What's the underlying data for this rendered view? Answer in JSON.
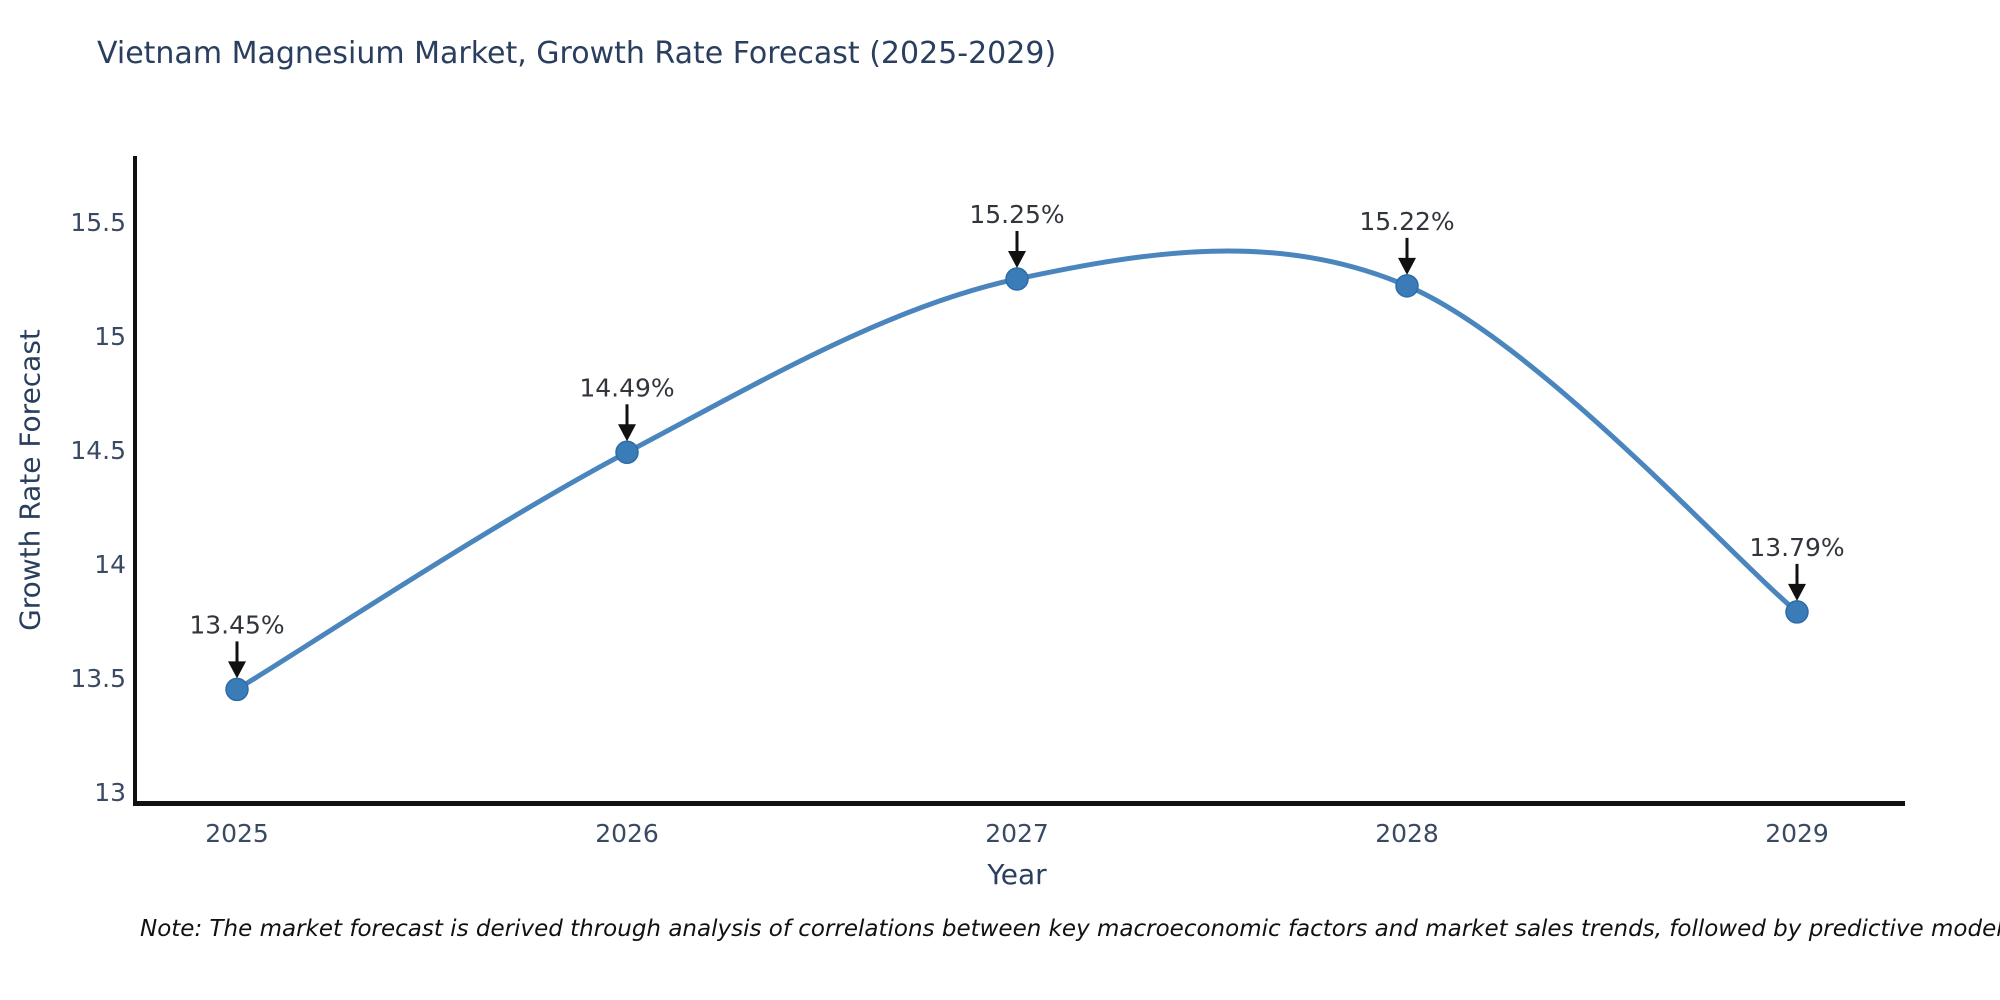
{
  "chart_data": {
    "type": "line",
    "title": "Vietnam Magnesium Market, Growth Rate Forecast (2025-2029)",
    "xlabel": "Year",
    "ylabel": "Growth Rate Forecast",
    "categories": [
      "2025",
      "2026",
      "2027",
      "2028",
      "2029"
    ],
    "series": [
      {
        "name": "Growth Rate Forecast",
        "values": [
          13.45,
          14.49,
          15.25,
          15.22,
          13.79
        ],
        "point_labels": [
          "13.45%",
          "14.49%",
          "15.25%",
          "15.22%",
          "13.79%"
        ]
      }
    ],
    "y_ticks": [
      13,
      13.5,
      14,
      14.5,
      15,
      15.5
    ],
    "y_tick_labels": [
      "13",
      "13.5",
      "14",
      "14.5",
      "15",
      "15.5"
    ],
    "ylim": [
      12.95,
      15.8
    ],
    "grid": false,
    "legend_position": "none",
    "smooth": true,
    "annotation_arrows": "down",
    "note": "Note: The market forecast is derived through analysis of correlations between key macroeconomic factors and market sales trends, followed by predictive modeling to project future sal",
    "colors": {
      "line": "#4a86bd",
      "marker": "#3a7cb8",
      "marker_edge": "#2e6ba8",
      "axis": "#111111",
      "title_text": "#2a3f5f",
      "tick_text": "#3a4a63",
      "annotation_text": "#30363c",
      "arrow": "#111111",
      "note_text": "#111111"
    }
  }
}
